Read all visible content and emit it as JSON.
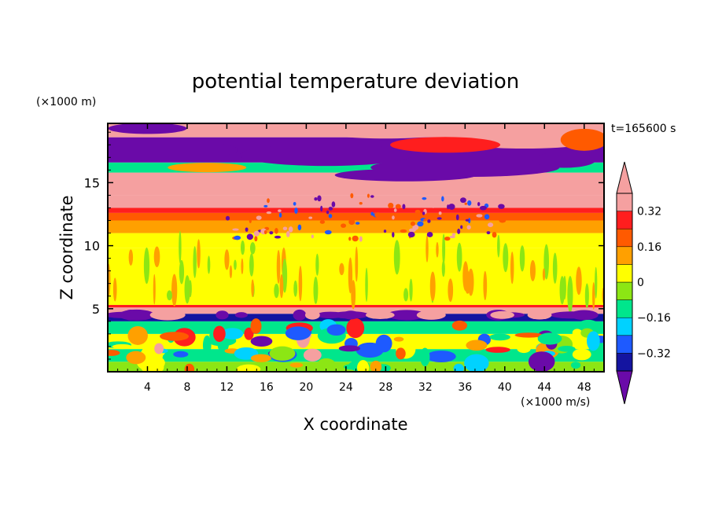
{
  "chart_data": {
    "type": "heatmap",
    "title": "potential temperature deviation",
    "xlabel": "X coordinate",
    "ylabel": "Z coordinate",
    "x_unit": "(×1000 m/s)",
    "y_unit": "(×1000 m)",
    "time_label": "t=165600 s",
    "xlim": [
      0,
      50
    ],
    "ylim": [
      0,
      19.7
    ],
    "x_ticks": [
      4,
      8,
      12,
      16,
      20,
      24,
      28,
      32,
      36,
      40,
      44,
      48
    ],
    "y_ticks": [
      5,
      10,
      15
    ],
    "colorbar": {
      "levels": [
        -0.4,
        -0.32,
        -0.24,
        -0.16,
        -0.08,
        0,
        0.08,
        0.16,
        0.24,
        0.32,
        0.4
      ],
      "tick_labels": [
        "0.32",
        "0.16",
        "0",
        "−0.16",
        "−0.32"
      ],
      "tick_values": [
        0.32,
        0.16,
        0,
        -0.16,
        -0.32
      ],
      "colors": [
        "#6a0aa8",
        "#1414a0",
        "#1e5aff",
        "#00d2ff",
        "#00e68c",
        "#8ce614",
        "#ffff00",
        "#ffa000",
        "#ff5a00",
        "#ff1e1e",
        "#f5a0a0"
      ]
    },
    "bands": [
      {
        "z": [
          0,
          0.8
        ],
        "value": -0.05
      },
      {
        "z": [
          0.8,
          1.8
        ],
        "value": -0.12
      },
      {
        "z": [
          1.8,
          3.0
        ],
        "value": 0.02
      },
      {
        "z": [
          3.0,
          4.0
        ],
        "value": -0.1
      },
      {
        "z": [
          4.0,
          4.6
        ],
        "value": -0.36
      },
      {
        "z": [
          4.6,
          5.1
        ],
        "value": 0.44
      },
      {
        "z": [
          5.1,
          5.3
        ],
        "value": 0.3
      },
      {
        "z": [
          5.3,
          9.8
        ],
        "value": 0.03
      },
      {
        "z": [
          9.8,
          11.0
        ],
        "value": 0.05
      },
      {
        "z": [
          11.0,
          12.0
        ],
        "value": 0.12
      },
      {
        "z": [
          12.0,
          12.6
        ],
        "value": 0.2
      },
      {
        "z": [
          12.6,
          13.0
        ],
        "value": 0.3
      },
      {
        "z": [
          13.0,
          14.0
        ],
        "value": 0.44
      },
      {
        "z": [
          14.0,
          15.8
        ],
        "value": 0.44
      },
      {
        "z": [
          15.8,
          16.6
        ],
        "value": -0.12
      },
      {
        "z": [
          16.6,
          18.6
        ],
        "value": -0.44
      },
      {
        "z": [
          18.6,
          19.7
        ],
        "value": 0.44
      }
    ]
  }
}
